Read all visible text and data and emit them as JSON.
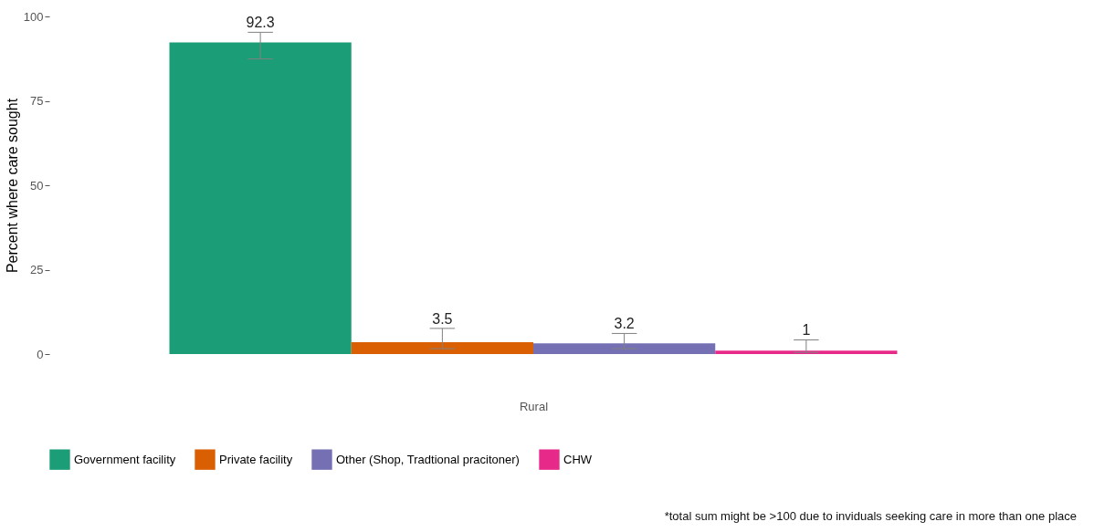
{
  "chart_data": {
    "type": "bar",
    "ylabel": "Percent where care sought",
    "xlabel": "Rural",
    "categories": [
      null
    ],
    "series": [
      {
        "name": "Government facility",
        "color": "#1b9e77",
        "values": [
          92.3
        ],
        "errors": [
          [
            87.4,
            95.3
          ]
        ]
      },
      {
        "name": "Private facility",
        "color": "#d95f02",
        "values": [
          3.5
        ],
        "errors": [
          [
            1.6,
            7.6
          ]
        ]
      },
      {
        "name": "Other (Shop, Tradtional pracitoner)",
        "color": "#7570b3",
        "values": [
          3.2
        ],
        "errors": [
          [
            1.6,
            6.1
          ]
        ]
      },
      {
        "name": "CHW",
        "color": "#e7298a",
        "values": [
          1
        ],
        "errors": [
          [
            0.5,
            4.2
          ]
        ]
      }
    ],
    "ylim": [
      0,
      100
    ],
    "yticks": [
      0,
      25,
      50,
      75,
      100
    ],
    "grid": false,
    "legend": "bottom",
    "data_labels": true,
    "annotations": [
      "*total sum might be >100 due to inviduals seeking care in more than one place"
    ]
  }
}
